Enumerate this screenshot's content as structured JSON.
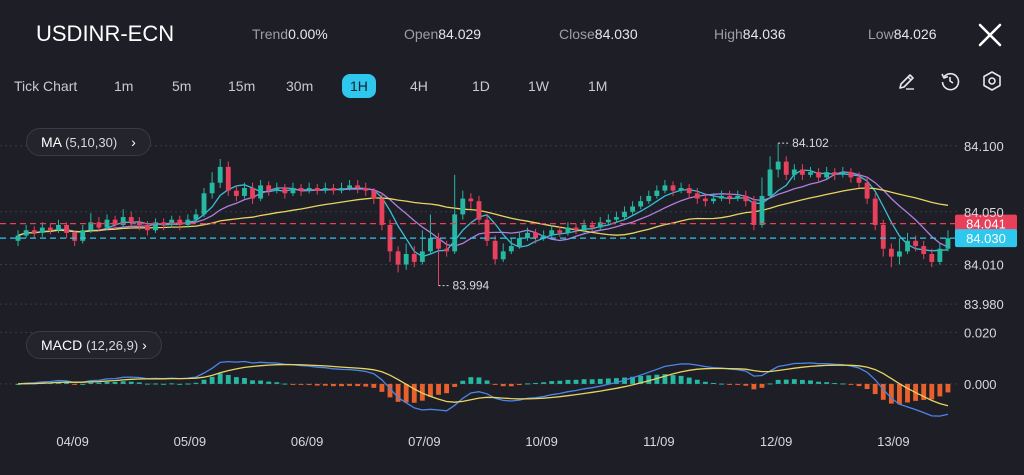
{
  "header": {
    "symbol": "USDINR-ECN",
    "stats": [
      {
        "label": "Trend",
        "value": "0.00%"
      },
      {
        "label": "Open",
        "value": "84.029"
      },
      {
        "label": "Close",
        "value": "84.030"
      },
      {
        "label": "High",
        "value": "84.036"
      },
      {
        "label": "Low",
        "value": "84.026"
      }
    ],
    "close_icon": "close-icon"
  },
  "timeframes": [
    "Tick Chart",
    "1m",
    "5m",
    "15m",
    "30m",
    "1H",
    "4H",
    "1D",
    "1W",
    "1M"
  ],
  "active_timeframe": "1H",
  "tools": [
    "pencil-icon",
    "history-icon",
    "settings-icon"
  ],
  "indicators": {
    "ma_label": "MA",
    "ma_params": "(5,10,30)",
    "macd_label": "MACD",
    "macd_params": "(12,26,9)"
  },
  "chart_data": [
    {
      "type": "candlestick",
      "categories": [
        "04/09",
        "05/09",
        "06/09",
        "07/09",
        "10/09",
        "11/09",
        "12/09",
        "13/09"
      ],
      "y_ticks": [
        "84.100",
        "84.050",
        "84.010",
        "83.980"
      ],
      "ylim": [
        83.968,
        84.118
      ],
      "price_labels": [
        {
          "label": "84.041",
          "value": 84.041,
          "color": "#e83f5b"
        },
        {
          "label": "84.030",
          "value": 84.03,
          "color": "#2ec7ee"
        }
      ],
      "annotations": [
        {
          "text": "84.102",
          "value": 84.102
        },
        {
          "text": "83.994",
          "value": 83.994
        }
      ],
      "candles": [
        [
          84.028,
          84.032,
          84.024,
          84.036
        ],
        [
          84.032,
          84.036,
          84.03,
          84.04
        ],
        [
          84.036,
          84.034,
          84.03,
          84.039
        ],
        [
          84.034,
          84.038,
          84.031,
          84.042
        ],
        [
          84.038,
          84.036,
          84.033,
          84.041
        ],
        [
          84.036,
          84.04,
          84.034,
          84.044
        ],
        [
          84.04,
          84.034,
          84.03,
          84.042
        ],
        [
          84.034,
          84.028,
          84.024,
          84.036
        ],
        [
          84.028,
          84.036,
          84.026,
          84.04
        ],
        [
          84.036,
          84.042,
          84.034,
          84.049
        ],
        [
          84.042,
          84.038,
          84.035,
          84.046
        ],
        [
          84.038,
          84.044,
          84.036,
          84.048
        ],
        [
          84.044,
          84.04,
          84.037,
          84.047
        ],
        [
          84.04,
          84.046,
          84.038,
          84.052
        ],
        [
          84.046,
          84.042,
          84.039,
          84.05
        ],
        [
          84.042,
          84.04,
          84.036,
          84.046
        ],
        [
          84.04,
          84.036,
          84.032,
          84.043
        ],
        [
          84.036,
          84.042,
          84.034,
          84.045
        ],
        [
          84.042,
          84.04,
          84.036,
          84.045
        ],
        [
          84.04,
          84.044,
          84.038,
          84.047
        ],
        [
          84.044,
          84.04,
          84.036,
          84.047
        ],
        [
          84.04,
          84.044,
          84.038,
          84.048
        ],
        [
          84.044,
          84.048,
          84.042,
          84.052
        ],
        [
          84.048,
          84.064,
          84.046,
          84.068
        ],
        [
          84.064,
          84.072,
          84.06,
          84.08
        ],
        [
          84.072,
          84.084,
          84.068,
          84.09
        ],
        [
          84.084,
          84.066,
          84.062,
          84.088
        ],
        [
          84.066,
          84.062,
          84.058,
          84.07
        ],
        [
          84.062,
          84.068,
          84.06,
          84.072
        ],
        [
          84.068,
          84.06,
          84.056,
          84.072
        ],
        [
          84.06,
          84.07,
          84.058,
          84.074
        ],
        [
          84.07,
          84.066,
          84.062,
          84.073
        ],
        [
          84.066,
          84.068,
          84.064,
          84.072
        ],
        [
          84.068,
          84.064,
          84.06,
          84.071
        ],
        [
          84.064,
          84.068,
          84.062,
          84.072
        ],
        [
          84.068,
          84.066,
          84.062,
          84.071
        ],
        [
          84.066,
          84.068,
          84.064,
          84.072
        ],
        [
          84.068,
          84.066,
          84.063,
          84.071
        ],
        [
          84.066,
          84.068,
          84.064,
          84.072
        ],
        [
          84.068,
          84.066,
          84.063,
          84.071
        ],
        [
          84.066,
          84.068,
          84.064,
          84.072
        ],
        [
          84.068,
          84.07,
          84.066,
          84.074
        ],
        [
          84.07,
          84.068,
          84.064,
          84.074
        ],
        [
          84.068,
          84.066,
          84.062,
          84.072
        ],
        [
          84.066,
          84.06,
          84.056,
          84.068
        ],
        [
          84.06,
          84.04,
          84.036,
          84.064
        ],
        [
          84.04,
          84.02,
          84.012,
          84.044
        ],
        [
          84.02,
          84.01,
          84.004,
          84.024
        ],
        [
          84.01,
          84.018,
          84.006,
          84.026
        ],
        [
          84.018,
          84.012,
          84.008,
          84.024
        ],
        [
          84.012,
          84.02,
          84.01,
          84.036
        ],
        [
          84.02,
          84.03,
          84.018,
          84.048
        ],
        [
          84.03,
          84.022,
          83.994,
          84.034
        ],
        [
          84.022,
          84.02,
          84.016,
          84.028
        ],
        [
          84.02,
          84.048,
          84.018,
          84.078
        ],
        [
          84.048,
          84.06,
          84.044,
          84.066
        ],
        [
          84.06,
          84.058,
          84.052,
          84.064
        ],
        [
          84.058,
          84.044,
          84.04,
          84.062
        ],
        [
          84.044,
          84.028,
          84.024,
          84.048
        ],
        [
          84.028,
          84.014,
          84.01,
          84.032
        ],
        [
          84.014,
          84.02,
          84.012,
          84.026
        ],
        [
          84.02,
          84.024,
          84.018,
          84.03
        ],
        [
          84.024,
          84.03,
          84.022,
          84.034
        ],
        [
          84.03,
          84.034,
          84.028,
          84.038
        ],
        [
          84.034,
          84.03,
          84.026,
          84.037
        ],
        [
          84.03,
          84.032,
          84.028,
          84.036
        ],
        [
          84.032,
          84.036,
          84.03,
          84.04
        ],
        [
          84.036,
          84.034,
          84.031,
          84.039
        ],
        [
          84.034,
          84.038,
          84.032,
          84.042
        ],
        [
          84.038,
          84.036,
          84.033,
          84.041
        ],
        [
          84.036,
          84.04,
          84.034,
          84.044
        ],
        [
          84.04,
          84.038,
          84.035,
          84.043
        ],
        [
          84.038,
          84.042,
          84.036,
          84.046
        ],
        [
          84.042,
          84.044,
          84.04,
          84.048
        ],
        [
          84.044,
          84.046,
          84.042,
          84.05
        ],
        [
          84.046,
          84.05,
          84.044,
          84.054
        ],
        [
          84.05,
          84.054,
          84.048,
          84.058
        ],
        [
          84.054,
          84.058,
          84.052,
          84.062
        ],
        [
          84.058,
          84.062,
          84.056,
          84.066
        ],
        [
          84.062,
          84.066,
          84.06,
          84.07
        ],
        [
          84.066,
          84.07,
          84.064,
          84.074
        ],
        [
          84.07,
          84.066,
          84.062,
          84.073
        ],
        [
          84.066,
          84.068,
          84.064,
          84.072
        ],
        [
          84.068,
          84.064,
          84.06,
          84.071
        ],
        [
          84.064,
          84.06,
          84.056,
          84.068
        ],
        [
          84.06,
          84.058,
          84.054,
          84.064
        ],
        [
          84.058,
          84.06,
          84.056,
          84.064
        ],
        [
          84.06,
          84.062,
          84.058,
          84.066
        ],
        [
          84.062,
          84.06,
          84.056,
          84.066
        ],
        [
          84.06,
          84.062,
          84.058,
          84.066
        ],
        [
          84.062,
          84.058,
          84.054,
          84.066
        ],
        [
          84.058,
          84.04,
          84.036,
          84.062
        ],
        [
          84.04,
          84.062,
          84.038,
          84.076
        ],
        [
          84.062,
          84.082,
          84.06,
          84.092
        ],
        [
          84.082,
          84.088,
          84.076,
          84.102
        ],
        [
          84.088,
          84.078,
          84.074,
          84.092
        ],
        [
          84.078,
          84.082,
          84.074,
          84.086
        ],
        [
          84.082,
          84.078,
          84.074,
          84.086
        ],
        [
          84.078,
          84.08,
          84.076,
          84.084
        ],
        [
          84.08,
          84.076,
          84.072,
          84.083
        ],
        [
          84.076,
          84.08,
          84.074,
          84.084
        ],
        [
          84.08,
          84.078,
          84.074,
          84.083
        ],
        [
          84.078,
          84.08,
          84.076,
          84.084
        ],
        [
          84.08,
          84.076,
          84.072,
          84.083
        ],
        [
          84.076,
          84.072,
          84.068,
          84.08
        ],
        [
          84.072,
          84.06,
          84.056,
          84.076
        ],
        [
          84.06,
          84.04,
          84.036,
          84.064
        ],
        [
          84.04,
          84.022,
          84.016,
          84.044
        ],
        [
          84.022,
          84.016,
          84.008,
          84.026
        ],
        [
          84.016,
          84.02,
          84.01,
          84.03
        ],
        [
          84.02,
          84.028,
          84.018,
          84.034
        ],
        [
          84.028,
          84.024,
          84.02,
          84.032
        ],
        [
          84.024,
          84.018,
          84.014,
          84.028
        ],
        [
          84.018,
          84.012,
          84.008,
          84.022
        ],
        [
          84.012,
          84.022,
          84.01,
          84.026
        ],
        [
          84.022,
          84.03,
          84.02,
          84.036
        ]
      ],
      "ma_series": [
        {
          "period": 5,
          "color": "#38bfd9"
        },
        {
          "period": 10,
          "color": "#b07fe0"
        },
        {
          "period": 30,
          "color": "#e6d562"
        }
      ]
    },
    {
      "type": "macd",
      "title": "MACD",
      "params": "(12,26,9)",
      "y_ticks": [
        "0.020",
        "0.000"
      ],
      "ylim": [
        -0.014,
        0.024
      ],
      "colors": {
        "macd": "#4a86e8",
        "signal": "#e6d562",
        "hist_pos": "#26b8a2",
        "hist_neg": "#e8602b"
      }
    }
  ]
}
